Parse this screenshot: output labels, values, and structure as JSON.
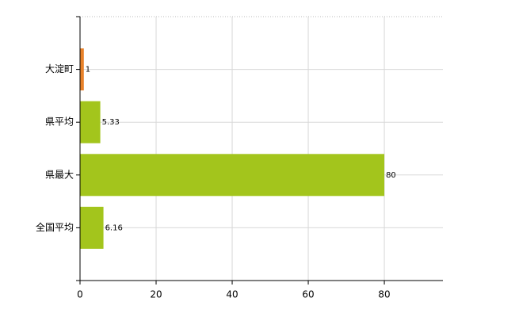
{
  "chart_data": {
    "type": "bar",
    "orientation": "horizontal",
    "categories": [
      "大淀町",
      "県平均",
      "県最大",
      "全国平均"
    ],
    "values": [
      1,
      5.33,
      80,
      6.16
    ],
    "colors": [
      "#e8822a",
      "#a3c51c",
      "#a3c51c",
      "#a3c51c"
    ],
    "xlim": [
      0,
      95.4
    ],
    "xticks": [
      0,
      20,
      40,
      60,
      80
    ],
    "grid": true
  }
}
